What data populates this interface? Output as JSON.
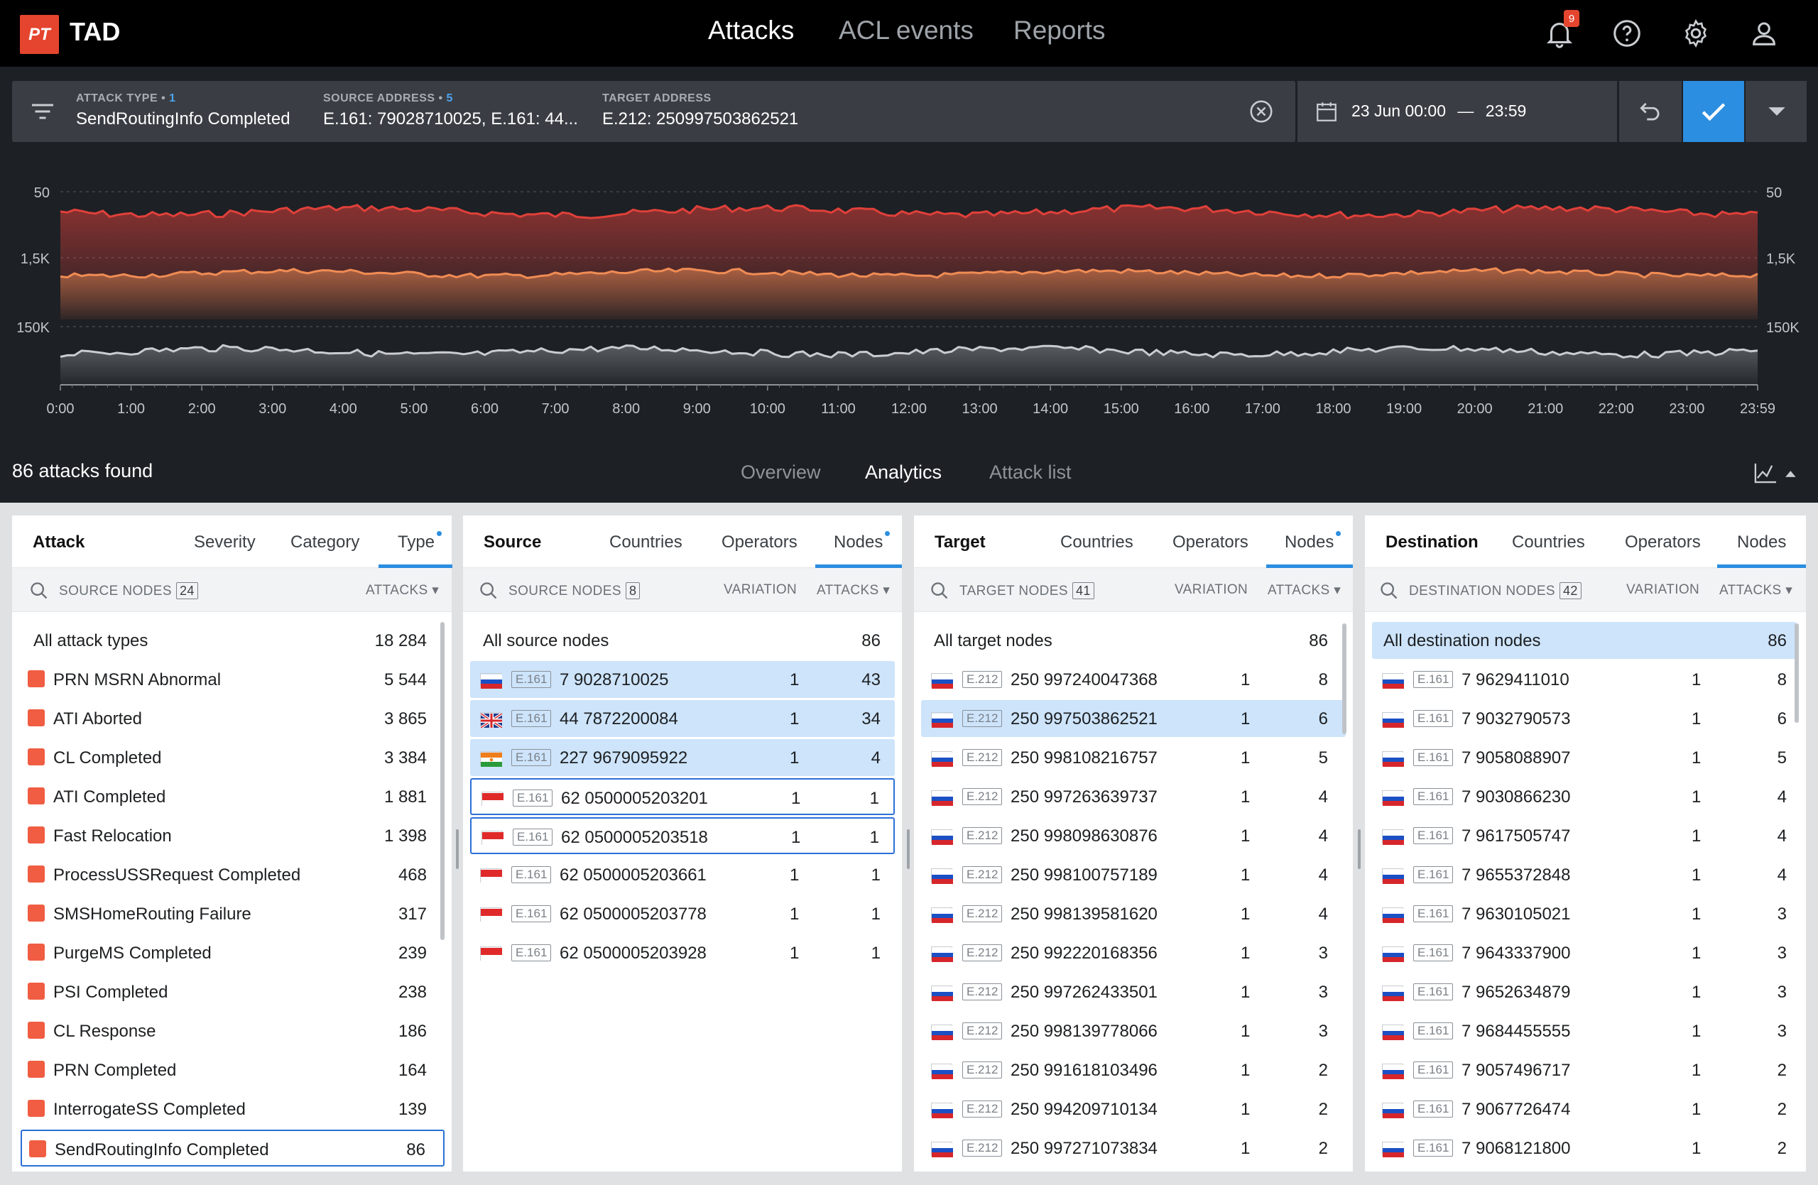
{
  "app": {
    "logo": "PT",
    "name": "TAD"
  },
  "nav": {
    "tabs": [
      "Attacks",
      "ACL events",
      "Reports"
    ],
    "active": "Attacks"
  },
  "top_icons": {
    "notifications": "bell-icon",
    "notification_count": "9",
    "help": "help-icon",
    "settings": "gear-icon",
    "profile": "user-icon"
  },
  "filter": {
    "attack_type": {
      "label": "ATTACK TYPE",
      "count": "1",
      "value": "SendRoutingInfo Completed"
    },
    "source": {
      "label": "SOURCE ADDRESS",
      "count": "5",
      "value": "E.161: 79028710025, E.161: 44..."
    },
    "target": {
      "label": "TARGET ADDRESS",
      "value": "E.212: 250997503862521"
    },
    "date": {
      "from": "23 Jun 00:00",
      "sep": "—",
      "to": "23:59"
    }
  },
  "chart_data": {
    "type": "area",
    "x": [
      "0:00",
      "1:00",
      "2:00",
      "3:00",
      "4:00",
      "5:00",
      "6:00",
      "7:00",
      "8:00",
      "9:00",
      "10:00",
      "11:00",
      "12:00",
      "13:00",
      "14:00",
      "15:00",
      "16:00",
      "17:00",
      "18:00",
      "19:00",
      "20:00",
      "21:00",
      "22:00",
      "23:00",
      "23:59"
    ],
    "series": [
      {
        "color": "#e0403a",
        "scale_label": "50"
      },
      {
        "color": "#f08c54",
        "scale_label": "1,5K"
      },
      {
        "color": "#c9ccd1",
        "scale_label": "150K"
      }
    ]
  },
  "results": {
    "found": "86 attacks found",
    "tabs": [
      "Overview",
      "Analytics",
      "Attack list"
    ],
    "active": "Analytics"
  },
  "panels": {
    "attack": {
      "tabs": [
        "Attack",
        "Severity",
        "Category",
        "Type"
      ],
      "header": {
        "label": "SOURCE NODES",
        "count": "24",
        "col": "ATTACKS"
      },
      "all": {
        "label": "All attack types",
        "value": "18 284"
      },
      "rows": [
        {
          "name": "PRN MSRN Abnormal",
          "value": "5 544"
        },
        {
          "name": "ATI Aborted",
          "value": "3 865"
        },
        {
          "name": "CL Completed",
          "value": "3 384"
        },
        {
          "name": "ATI Completed",
          "value": "1 881"
        },
        {
          "name": "Fast Relocation",
          "value": "1 398"
        },
        {
          "name": "ProcessUSSRequest Completed",
          "value": "468"
        },
        {
          "name": "SMSHomeRouting Failure",
          "value": "317"
        },
        {
          "name": "PurgeMS Completed",
          "value": "239"
        },
        {
          "name": "PSI Completed",
          "value": "238"
        },
        {
          "name": "CL Response",
          "value": "186"
        },
        {
          "name": "PRN Completed",
          "value": "164"
        },
        {
          "name": "InterrogateSS Completed",
          "value": "139"
        },
        {
          "name": "SendRoutingInfo Completed",
          "value": "86"
        }
      ]
    },
    "source": {
      "tabs": [
        "Source",
        "Countries",
        "Operators",
        "Nodes"
      ],
      "header": {
        "label": "SOURCE NODES",
        "count": "8",
        "col2": "VARIATION",
        "col": "ATTACKS"
      },
      "all": {
        "label": "All source nodes",
        "value": "86"
      },
      "rows": [
        {
          "flag": "ru",
          "tag": "E.161",
          "node": "7 9028710025",
          "var": "1",
          "value": "43"
        },
        {
          "flag": "gb",
          "tag": "E.161",
          "node": "44 7872200084",
          "var": "1",
          "value": "34"
        },
        {
          "flag": "ne",
          "tag": "E.161",
          "node": "227 9679095922",
          "var": "1",
          "value": "4"
        },
        {
          "flag": "id",
          "tag": "E.161",
          "node": "62 0500005203201",
          "var": "1",
          "value": "1"
        },
        {
          "flag": "id",
          "tag": "E.161",
          "node": "62 0500005203518",
          "var": "1",
          "value": "1"
        },
        {
          "flag": "id",
          "tag": "E.161",
          "node": "62 0500005203661",
          "var": "1",
          "value": "1"
        },
        {
          "flag": "id",
          "tag": "E.161",
          "node": "62 0500005203778",
          "var": "1",
          "value": "1"
        },
        {
          "flag": "id",
          "tag": "E.161",
          "node": "62 0500005203928",
          "var": "1",
          "value": "1"
        }
      ]
    },
    "target": {
      "tabs": [
        "Target",
        "Countries",
        "Operators",
        "Nodes"
      ],
      "header": {
        "label": "TARGET NODES",
        "count": "41",
        "col2": "VARIATION",
        "col": "ATTACKS"
      },
      "all": {
        "label": "All target nodes",
        "value": "86"
      },
      "rows": [
        {
          "tag": "E.212",
          "node": "250 997240047368",
          "var": "1",
          "value": "8"
        },
        {
          "tag": "E.212",
          "node": "250 997503862521",
          "var": "1",
          "value": "6"
        },
        {
          "tag": "E.212",
          "node": "250 998108216757",
          "var": "1",
          "value": "5"
        },
        {
          "tag": "E.212",
          "node": "250 997263639737",
          "var": "1",
          "value": "4"
        },
        {
          "tag": "E.212",
          "node": "250 998098630876",
          "var": "1",
          "value": "4"
        },
        {
          "tag": "E.212",
          "node": "250 998100757189",
          "var": "1",
          "value": "4"
        },
        {
          "tag": "E.212",
          "node": "250 998139581620",
          "var": "1",
          "value": "4"
        },
        {
          "tag": "E.212",
          "node": "250 992220168356",
          "var": "1",
          "value": "3"
        },
        {
          "tag": "E.212",
          "node": "250 997262433501",
          "var": "1",
          "value": "3"
        },
        {
          "tag": "E.212",
          "node": "250 998139778066",
          "var": "1",
          "value": "3"
        },
        {
          "tag": "E.212",
          "node": "250 991618103496",
          "var": "1",
          "value": "2"
        },
        {
          "tag": "E.212",
          "node": "250 994209710134",
          "var": "1",
          "value": "2"
        },
        {
          "tag": "E.212",
          "node": "250 997271073834",
          "var": "1",
          "value": "2"
        }
      ]
    },
    "destination": {
      "tabs": [
        "Destination",
        "Countries",
        "Operators",
        "Nodes"
      ],
      "header": {
        "label": "DESTINATION NODES",
        "count": "42",
        "col2": "VARIATION",
        "col": "ATTACKS"
      },
      "all": {
        "label": "All destination nodes",
        "value": "86"
      },
      "rows": [
        {
          "tag": "E.161",
          "node": "7 9629411010",
          "var": "1",
          "value": "8"
        },
        {
          "tag": "E.161",
          "node": "7 9032790573",
          "var": "1",
          "value": "6"
        },
        {
          "tag": "E.161",
          "node": "7 9058088907",
          "var": "1",
          "value": "5"
        },
        {
          "tag": "E.161",
          "node": "7 9030866230",
          "var": "1",
          "value": "4"
        },
        {
          "tag": "E.161",
          "node": "7 9617505747",
          "var": "1",
          "value": "4"
        },
        {
          "tag": "E.161",
          "node": "7 9655372848",
          "var": "1",
          "value": "4"
        },
        {
          "tag": "E.161",
          "node": "7 9630105021",
          "var": "1",
          "value": "3"
        },
        {
          "tag": "E.161",
          "node": "7 9643337900",
          "var": "1",
          "value": "3"
        },
        {
          "tag": "E.161",
          "node": "7 9652634879",
          "var": "1",
          "value": "3"
        },
        {
          "tag": "E.161",
          "node": "7 9684455555",
          "var": "1",
          "value": "3"
        },
        {
          "tag": "E.161",
          "node": "7 9057496717",
          "var": "1",
          "value": "2"
        },
        {
          "tag": "E.161",
          "node": "7 9067726474",
          "var": "1",
          "value": "2"
        },
        {
          "tag": "E.161",
          "node": "7 9068121800",
          "var": "1",
          "value": "2"
        }
      ]
    }
  }
}
